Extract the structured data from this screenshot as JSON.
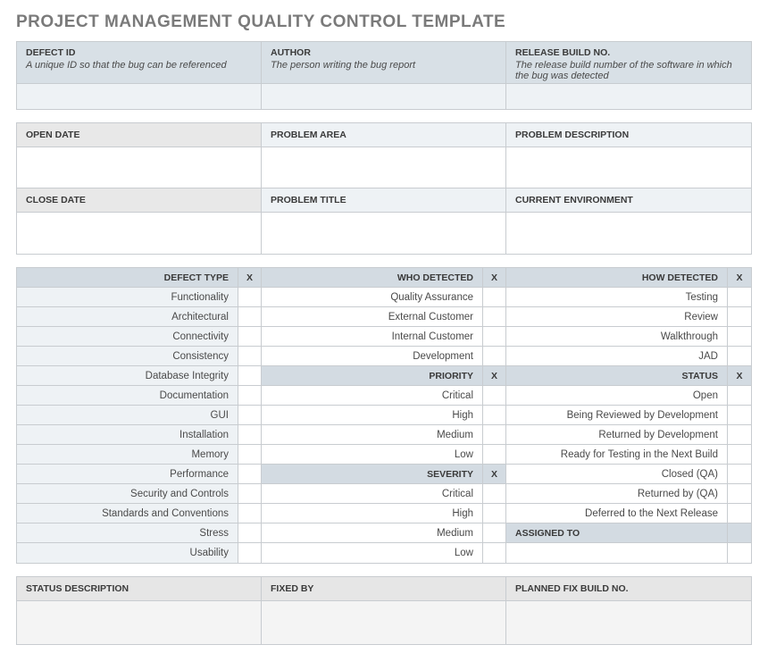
{
  "title": "PROJECT MANAGEMENT QUALITY CONTROL TEMPLATE",
  "section1": {
    "cols": [
      {
        "label": "DEFECT ID",
        "desc": "A unique ID so that the bug can be referenced"
      },
      {
        "label": "AUTHOR",
        "desc": "The person writing the bug report"
      },
      {
        "label": "RELEASE BUILD NO.",
        "desc": "The release build number of the software in which the bug was detected"
      }
    ]
  },
  "section2a": {
    "cols": [
      {
        "label": "OPEN DATE",
        "grey": true
      },
      {
        "label": "PROBLEM AREA",
        "grey": false
      },
      {
        "label": "PROBLEM DESCRIPTION",
        "grey": false
      }
    ]
  },
  "section2b": {
    "cols": [
      {
        "label": "CLOSE DATE",
        "grey": true
      },
      {
        "label": "PROBLEM TITLE",
        "grey": false
      },
      {
        "label": "CURRENT ENVIRONMENT",
        "grey": false
      }
    ]
  },
  "class": {
    "xmark": "X",
    "defect_type": {
      "label": "DEFECT TYPE",
      "items": [
        "Functionality",
        "Architectural",
        "Connectivity",
        "Consistency",
        "Database Integrity",
        "Documentation",
        "GUI",
        "Installation",
        "Memory",
        "Performance",
        "Security and Controls",
        "Standards and Conventions",
        "Stress",
        "Usability"
      ]
    },
    "who_detected": {
      "label": "WHO DETECTED",
      "items": [
        "Quality Assurance",
        "External Customer",
        "Internal Customer",
        "Development"
      ]
    },
    "priority": {
      "label": "PRIORITY",
      "items": [
        "Critical",
        "High",
        "Medium",
        "Low"
      ]
    },
    "severity": {
      "label": "SEVERITY",
      "items": [
        "Critical",
        "High",
        "Medium",
        "Low"
      ]
    },
    "how_detected": {
      "label": "HOW DETECTED",
      "items": [
        "Testing",
        "Review",
        "Walkthrough",
        "JAD"
      ]
    },
    "status": {
      "label": "STATUS",
      "items": [
        "Open",
        "Being Reviewed by Development",
        "Returned by Development",
        "Ready for Testing in the Next Build",
        "Closed (QA)",
        "Returned by (QA)",
        "Deferred to the Next Release"
      ]
    },
    "assigned_to": {
      "label": "ASSIGNED TO"
    }
  },
  "section4": {
    "cols": [
      {
        "label": "STATUS DESCRIPTION"
      },
      {
        "label": "FIXED BY"
      },
      {
        "label": "PLANNED FIX BUILD NO."
      }
    ]
  },
  "colors": {
    "header_blue": "#d8e0e6",
    "light_blue": "#eef2f5",
    "header_grey": "#e8e8e8",
    "border": "#c8ccd0"
  }
}
